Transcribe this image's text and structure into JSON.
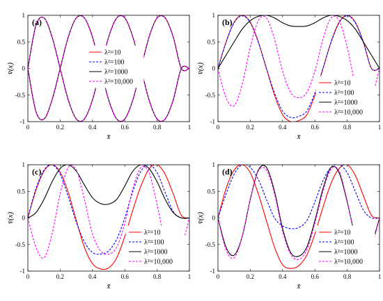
{
  "chart_data": [
    {
      "type": "line",
      "label": "(a)",
      "xlabel": "x̄",
      "ylabel": "v̄(x)",
      "xlim": [
        0,
        1
      ],
      "ylim": [
        -1,
        1
      ],
      "xticks": [
        "0",
        "0.2",
        "0.4",
        "0.6",
        "0.8",
        "1"
      ],
      "yticks": [
        "-1",
        "-0.5",
        "0",
        "0.5",
        "1"
      ],
      "legend_position": "center",
      "x": [
        0,
        0.05,
        0.1,
        0.15,
        0.2,
        0.25,
        0.3,
        0.35,
        0.4,
        0.45,
        0.5,
        0.55,
        0.6,
        0.65,
        0.7,
        0.75,
        0.8,
        0.85,
        0.9,
        0.95,
        1
      ],
      "series": [
        {
          "name": "λ²=10",
          "color": "#ff0000",
          "dash": "solid",
          "values": [
            0,
            0.81,
            0.95,
            0.59,
            -0.0,
            -0.59,
            -0.95,
            -0.95,
            -0.59,
            0.0,
            0.59,
            0.95,
            0.95,
            0.59,
            0.0,
            -0.59,
            -0.95,
            -0.95,
            -0.59,
            0.0,
            0.0
          ]
        },
        {
          "name": "λ²=100",
          "color": "#0000ff",
          "dash": "dashed",
          "values": [
            0,
            0.81,
            0.95,
            0.59,
            -0.0,
            -0.59,
            -0.95,
            -0.95,
            -0.59,
            0.0,
            0.59,
            0.95,
            0.95,
            0.59,
            0.0,
            -0.59,
            -0.95,
            -0.95,
            -0.59,
            0.0,
            0.0
          ]
        },
        {
          "name": "λ²=1000",
          "color": "#000000",
          "dash": "solid",
          "values": [
            0,
            0.81,
            0.95,
            0.59,
            -0.0,
            -0.59,
            -0.95,
            -0.95,
            -0.59,
            0.0,
            0.59,
            0.95,
            0.95,
            0.59,
            0.0,
            -0.59,
            -0.95,
            -0.95,
            -0.59,
            0.0,
            0.0
          ]
        },
        {
          "name": "λ²=10,000",
          "color": "#ff00ff",
          "dash": "dashed",
          "values": [
            0,
            0.81,
            0.95,
            0.59,
            -0.0,
            -0.59,
            -0.95,
            -0.95,
            -0.59,
            0.0,
            0.59,
            0.95,
            0.95,
            0.59,
            0.0,
            -0.59,
            -0.95,
            -0.95,
            -0.59,
            0.0,
            0.0
          ]
        }
      ],
      "mirror_values": [
        0,
        -0.81,
        -0.95,
        -0.59,
        0.0,
        0.59,
        0.95,
        0.95,
        0.59,
        -0.0,
        -0.59,
        -0.95,
        -0.95,
        -0.59,
        -0.0,
        0.59,
        0.95,
        0.95,
        0.59,
        -0.0,
        0.0
      ]
    },
    {
      "type": "line",
      "label": "(b)",
      "xlabel": "x̄",
      "ylabel": "v̄(x)",
      "xlim": [
        0,
        1
      ],
      "ylim": [
        -1,
        1
      ],
      "xticks": [
        "0",
        "0.2",
        "0.4",
        "0.6",
        "0.8",
        "1"
      ],
      "yticks": [
        "-1",
        "-0.5",
        "0",
        "0.5",
        "1"
      ],
      "legend_position": "bottom-right",
      "x": [
        0,
        0.05,
        0.1,
        0.15,
        0.2,
        0.25,
        0.3,
        0.35,
        0.4,
        0.45,
        0.5,
        0.55,
        0.6,
        0.65,
        0.7,
        0.75,
        0.8,
        0.85,
        0.9,
        0.95,
        1
      ],
      "series": [
        {
          "name": "λ²=10",
          "color": "#ff0000",
          "dash": "solid",
          "values": [
            0,
            0.5,
            0.87,
            1.0,
            0.87,
            0.5,
            0.0,
            -0.5,
            -0.87,
            -1.0,
            -0.98,
            -0.87,
            -0.5,
            0.0,
            0.5,
            0.87,
            1.0,
            0.87,
            0.5,
            0.0,
            0.0
          ]
        },
        {
          "name": "λ²=100",
          "color": "#0000ff",
          "dash": "dashed",
          "values": [
            0,
            0.49,
            0.86,
            0.99,
            0.86,
            0.49,
            0.0,
            -0.46,
            -0.8,
            -0.92,
            -0.9,
            -0.8,
            -0.46,
            0.0,
            0.49,
            0.86,
            0.99,
            0.86,
            0.49,
            0.0,
            0.0
          ]
        },
        {
          "name": "λ²=1000",
          "color": "#000000",
          "dash": "solid",
          "values": [
            0,
            0.25,
            0.5,
            0.74,
            0.9,
            0.98,
            1.0,
            0.95,
            0.86,
            0.8,
            0.79,
            0.8,
            0.86,
            0.95,
            1.0,
            0.98,
            0.9,
            0.74,
            0.5,
            0.25,
            0.0
          ]
        },
        {
          "name": "λ²=10,000",
          "color": "#ff00ff",
          "dash": "dashed",
          "values": [
            0,
            -0.55,
            -0.7,
            -0.3,
            0.4,
            0.9,
            0.95,
            0.55,
            -0.05,
            -0.45,
            -0.55,
            -0.45,
            -0.05,
            0.55,
            0.95,
            0.9,
            0.4,
            -0.3,
            -0.7,
            -0.55,
            0.0
          ]
        }
      ]
    },
    {
      "type": "line",
      "label": "(c)",
      "xlabel": "x̄",
      "ylabel": "v̄(x)",
      "xlim": [
        0,
        1
      ],
      "ylim": [
        -1,
        1
      ],
      "xticks": [
        "0",
        "0.2",
        "0.4",
        "0.6",
        "0.8",
        "1"
      ],
      "yticks": [
        "-1",
        "-0.5",
        "0",
        "0.5",
        "1"
      ],
      "legend_position": "bottom-right",
      "x": [
        0,
        0.05,
        0.1,
        0.15,
        0.2,
        0.25,
        0.3,
        0.35,
        0.4,
        0.45,
        0.5,
        0.55,
        0.6,
        0.65,
        0.7,
        0.75,
        0.8,
        0.85,
        0.9,
        0.95,
        1
      ],
      "series": [
        {
          "name": "λ²=10",
          "color": "#ff0000",
          "dash": "solid",
          "values": [
            0,
            0.52,
            0.88,
            1.0,
            0.86,
            0.48,
            -0.05,
            -0.55,
            -0.86,
            -0.96,
            -0.94,
            -0.75,
            -0.35,
            0.15,
            0.6,
            0.92,
            1.0,
            0.82,
            0.45,
            0.05,
            0.0
          ]
        },
        {
          "name": "λ²=100",
          "color": "#0000ff",
          "dash": "dashed",
          "values": [
            0,
            0.55,
            0.9,
            1.0,
            0.82,
            0.4,
            -0.08,
            -0.45,
            -0.65,
            -0.68,
            -0.62,
            -0.4,
            0.0,
            0.5,
            0.88,
            1.0,
            0.85,
            0.48,
            0.12,
            0.0,
            0.0
          ]
        },
        {
          "name": "λ²=1000",
          "color": "#000000",
          "dash": "solid",
          "values": [
            0,
            0.1,
            0.35,
            0.68,
            0.93,
            1.0,
            0.88,
            0.62,
            0.38,
            0.27,
            0.26,
            0.35,
            0.6,
            0.88,
            1.0,
            0.93,
            0.68,
            0.35,
            0.1,
            0.0,
            0.0
          ]
        },
        {
          "name": "λ²=10,000",
          "color": "#ff00ff",
          "dash": "dashed",
          "values": [
            0,
            -0.55,
            -0.75,
            -0.3,
            0.45,
            0.95,
            0.9,
            0.35,
            -0.3,
            -0.62,
            -0.68,
            -0.55,
            -0.1,
            0.55,
            0.95,
            0.85,
            0.25,
            -0.45,
            -0.78,
            -0.55,
            0.0
          ]
        }
      ]
    },
    {
      "type": "line",
      "label": "(d)",
      "xlabel": "x̄",
      "ylabel": "v̄(x)",
      "xlim": [
        0,
        1
      ],
      "ylim": [
        -1,
        1
      ],
      "xticks": [
        "0",
        "0.2",
        "0.4",
        "0.6",
        "0.8",
        "1"
      ],
      "yticks": [
        "-1",
        "-0.5",
        "0",
        "0.5",
        "1"
      ],
      "legend_position": "bottom-center",
      "x": [
        0,
        0.05,
        0.1,
        0.15,
        0.2,
        0.25,
        0.3,
        0.35,
        0.4,
        0.45,
        0.5,
        0.55,
        0.6,
        0.65,
        0.7,
        0.75,
        0.8,
        0.85,
        0.9,
        0.95,
        1
      ],
      "series": [
        {
          "name": "λ²=10",
          "color": "#ff0000",
          "dash": "solid",
          "values": [
            0,
            0.55,
            0.9,
            1.0,
            0.85,
            0.45,
            -0.05,
            -0.55,
            -0.88,
            -0.95,
            -0.9,
            -0.7,
            -0.3,
            0.2,
            0.65,
            0.93,
            1.0,
            0.8,
            0.42,
            0.05,
            0.0
          ]
        },
        {
          "name": "λ²=100",
          "color": "#0000ff",
          "dash": "dashed",
          "values": [
            0,
            0.45,
            0.82,
            1.0,
            0.95,
            0.72,
            0.35,
            0.0,
            -0.15,
            -0.2,
            -0.18,
            -0.05,
            0.3,
            0.7,
            0.95,
            1.0,
            0.85,
            0.5,
            0.15,
            0.0,
            0.0
          ]
        },
        {
          "name": "λ²=1000",
          "color": "#000000",
          "dash": "solid",
          "values": [
            0,
            -0.55,
            -0.7,
            -0.35,
            0.35,
            0.9,
            0.95,
            0.5,
            -0.2,
            -0.65,
            -0.72,
            -0.55,
            -0.05,
            0.55,
            0.95,
            0.85,
            0.3,
            -0.35,
            -0.72,
            -0.5,
            0.0
          ]
        },
        {
          "name": "λ²=10,000",
          "color": "#ff00ff",
          "dash": "dashed",
          "values": [
            0,
            -0.6,
            -0.75,
            -0.35,
            0.35,
            0.88,
            0.9,
            0.45,
            -0.25,
            -0.68,
            -0.78,
            -0.6,
            -0.1,
            0.5,
            0.92,
            0.88,
            0.32,
            -0.38,
            -0.76,
            -0.55,
            0.0
          ]
        }
      ]
    }
  ]
}
